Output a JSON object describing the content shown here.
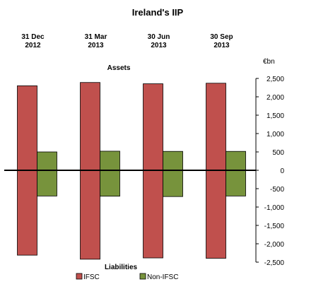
{
  "chart_data": {
    "type": "bar",
    "title": "Ireland's IIP",
    "unit_label": "€bn",
    "categories": [
      [
        "31 Dec",
        "2012"
      ],
      [
        "31 Mar",
        "2013"
      ],
      [
        "30 Jun",
        "2013"
      ],
      [
        "30 Sep",
        "2013"
      ]
    ],
    "section_labels": {
      "top": "Assets",
      "bottom": "Liabilities"
    },
    "ylim": [
      -2500,
      2500
    ],
    "yticks": [
      {
        "value": 2500,
        "label": "2,500"
      },
      {
        "value": 2000,
        "label": "2,000"
      },
      {
        "value": 1500,
        "label": "1,500"
      },
      {
        "value": 1000,
        "label": "1,000"
      },
      {
        "value": 500,
        "label": "500"
      },
      {
        "value": 0,
        "label": "0"
      },
      {
        "value": -500,
        "label": "-500"
      },
      {
        "value": -1000,
        "label": "-1,000"
      },
      {
        "value": -1500,
        "label": "-1,500"
      },
      {
        "value": -2000,
        "label": "-2,000"
      },
      {
        "value": -2500,
        "label": "-2,500"
      }
    ],
    "grid": false,
    "legend_position": "bottom",
    "series": [
      {
        "name": "IFSC",
        "color": "#c0504d",
        "assets": [
          2300,
          2390,
          2355,
          2370
        ],
        "liabilities": [
          -2310,
          -2420,
          -2385,
          -2395
        ]
      },
      {
        "name": "Non-IFSC",
        "color": "#77933c",
        "assets": [
          500,
          520,
          515,
          515
        ],
        "liabilities": [
          -700,
          -705,
          -715,
          -700
        ]
      }
    ]
  }
}
